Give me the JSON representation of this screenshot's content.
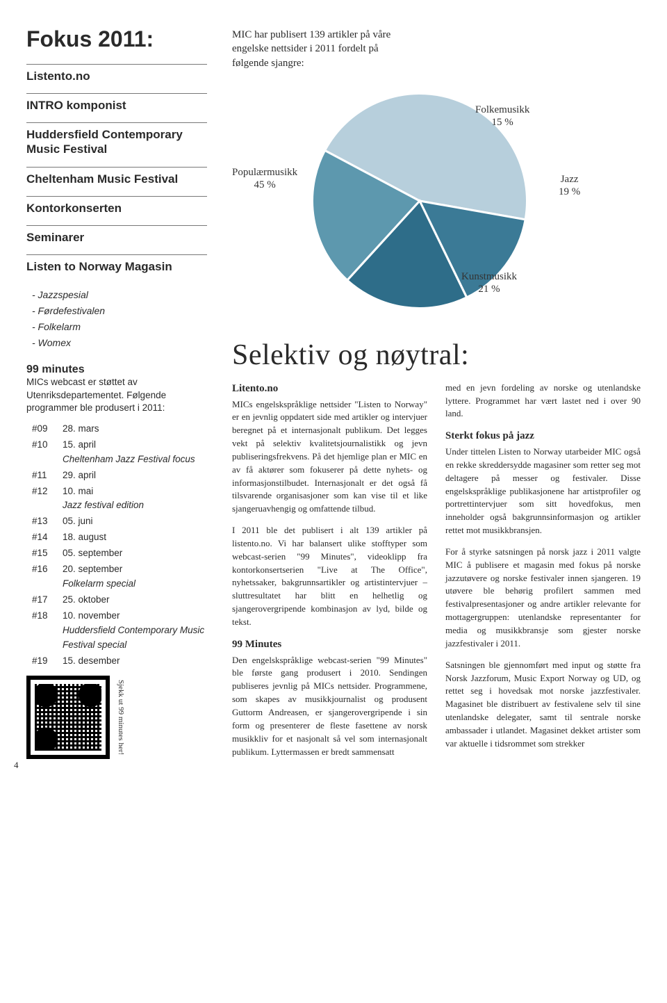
{
  "page_number": "4",
  "sidebar": {
    "title": "Fokus 2011:",
    "blocks": [
      "Listento.no",
      "INTRO komponist",
      "Huddersfield Contemporary Music Festival",
      "Cheltenham Music Festival",
      "Kontorkonserten",
      "Seminarer",
      "Listen to Norway Magasin"
    ],
    "sub_list": [
      "- Jazzspesial",
      "- Førdefestivalen",
      "- Folkelarm",
      "- Womex"
    ],
    "nm_title": "99 minutes",
    "nm_body": "MICs webcast er støttet av Utenriksdepartementet. Følgende programmer ble produsert i 2011:",
    "programs": [
      {
        "n": "#09",
        "d": "28. mars",
        "e": ""
      },
      {
        "n": "#10",
        "d": "15. april",
        "e": "Cheltenham Jazz Festival focus"
      },
      {
        "n": "#11",
        "d": "29. april",
        "e": ""
      },
      {
        "n": "#12",
        "d": "10. mai",
        "e": "Jazz festival edition"
      },
      {
        "n": "#13",
        "d": "05. juni",
        "e": ""
      },
      {
        "n": "#14",
        "d": "18. august",
        "e": ""
      },
      {
        "n": "#15",
        "d": "05. september",
        "e": ""
      },
      {
        "n": "#16",
        "d": "20. september",
        "e": "Folkelarm special"
      },
      {
        "n": "#17",
        "d": "25. oktober",
        "e": ""
      },
      {
        "n": "#18",
        "d": "10. november",
        "e": "Huddersfield Contemporary Music Festival special"
      },
      {
        "n": "#19",
        "d": "15. desember",
        "e": ""
      }
    ],
    "qr_label": "Sjekk ut 99 minutes her!"
  },
  "intro": "MIC har publisert 139 artikler på våre engelske nettsider i 2011 fordelt på følgende sjangre:",
  "pie": {
    "type": "pie",
    "slices": [
      {
        "label": "Populærmusikk",
        "pct": "45 %",
        "value": 45,
        "color": "#b7cfdc"
      },
      {
        "label": "Folkemusikk",
        "pct": "15 %",
        "value": 15,
        "color": "#3b7a96"
      },
      {
        "label": "Jazz",
        "pct": "19 %",
        "value": 19,
        "color": "#2e6d89"
      },
      {
        "label": "Kunstmusikk",
        "pct": "21 %",
        "value": 21,
        "color": "#5d98ae"
      }
    ],
    "stroke": "#ffffff",
    "stroke_width": 2,
    "label_fontsize": 15,
    "start_angle_deg": -152
  },
  "article": {
    "title": "Selektiv og nøytral:",
    "col1": {
      "h1": "Litento.no",
      "p1": "MICs engelskspråklige nettsider \"Listen to Norway\" er en jevnlig oppdatert side med artikler og intervjuer beregnet på et internasjonalt publikum. Det legges vekt på selektiv kvalitetsjournalistikk og jevn publiseringsfrekvens. På det hjemlige plan er MIC en av få aktører som fokuserer på dette nyhets- og informasjonstilbudet. Internasjonalt er det også få tilsvarende organisasjoner som kan vise til et like sjangeruavhengig og omfattende tilbud.",
      "p2": "I 2011 ble det publisert i alt 139 artikler på listento.no. Vi har balansert ulike stofftyper som webcast-serien \"99 Minutes\", videoklipp fra kontorkonsertserien \"Live at The Office\", nyhetssaker, bakgrunnsartikler og artist­intervjuer – sluttresultatet har blitt en helhetlig og sjangerovergripende kombinasjon av lyd, bilde og tekst.",
      "h2": "99 Minutes",
      "p3": "Den engelskspråklige webcast-serien \"99 Minutes\" ble første gang produsert i 2010. Sendingen publiseres jevnlig på MICs nett­sider. Programmene, som skapes av musikk­journalist og produsent Guttorm Andreasen, er sjangerovergripende i sin form og presenterer de fleste fasettene av norsk musikkliv for et nasjonalt så vel som internasjonalt publikum. Lyttermassen er bredt sammensatt"
    },
    "col2": {
      "p1": "med en jevn fordeling av norske og utenlandske lyttere. Programmet har vært lastet ned i over 90 land.",
      "h1": "Sterkt fokus på jazz",
      "p2": "Under tittelen Listen to Norway utarbeider MIC også en rekke skreddersydde magasiner som retter seg mot deltagere på messer og festivaler. Disse engelskspråklige publikasjonene har artistprofiler og portrettintervjuer som sitt hovedfokus, men inneholder også bakgrunnsinformasjon og artikler rettet mot musikkbransjen.",
      "p3": "For å styrke satsningen på norsk jazz i 2011 valgte MIC å publisere et magasin med fokus på norske jazzutøvere og norske festivaler innen sjangeren. 19 utøvere ble behørig profilert sammen med festivalpresentasjoner og andre artikler relevante for mottagergruppen: utenlandske representanter for media og musikkbransje som gjester norske jazzfestivaler i 2011.",
      "p4": "Satsningen ble gjennomført med input og støtte fra Norsk Jazzforum, Music Export Norway og UD, og rettet seg i hovedsak mot norske jazzfestivaler. Magasinet ble distribuert av festivalene selv til sine utenlandske delegater, samt til sentrale norske ambassader i utlandet. Magasinet dekket artister som var aktuelle i tidsrommet som strekker"
    }
  }
}
